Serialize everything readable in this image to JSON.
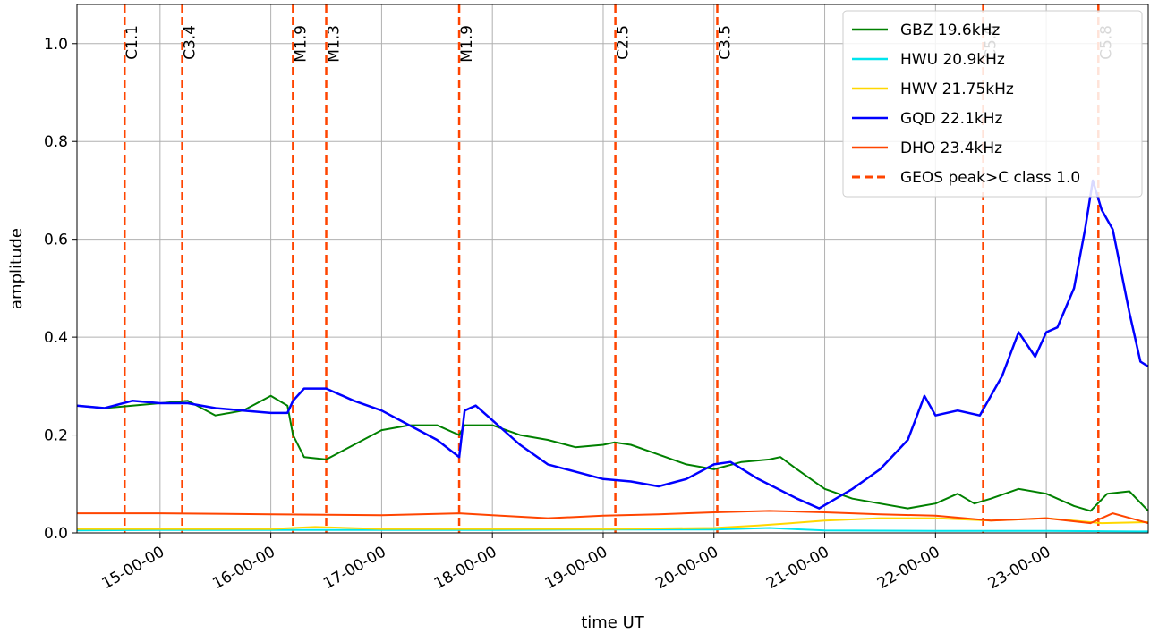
{
  "chart_data": {
    "type": "line",
    "xlabel": "time UT",
    "ylabel": "amplitude",
    "xlim": [
      14.25,
      23.92
    ],
    "ylim": [
      0.0,
      1.08
    ],
    "grid": true,
    "legend_position": "top-right",
    "y_ticks": [
      0.0,
      0.2,
      0.4,
      0.6,
      0.8,
      1.0
    ],
    "y_tick_labels": [
      "0.0",
      "0.2",
      "0.4",
      "0.6",
      "0.8",
      "1.0"
    ],
    "x_ticks": [
      15,
      16,
      17,
      18,
      19,
      20,
      21,
      22,
      23
    ],
    "x_tick_labels": [
      "15-00-00",
      "16-00-00",
      "17-00-00",
      "18-00-00",
      "19-00-00",
      "20-00-00",
      "21-00-00",
      "22-00-00",
      "23-00-00"
    ],
    "series": [
      {
        "name": "GBZ 19.6kHz",
        "color": "#008000",
        "points": [
          [
            14.25,
            0.26
          ],
          [
            14.5,
            0.255
          ],
          [
            14.75,
            0.26
          ],
          [
            15.0,
            0.265
          ],
          [
            15.25,
            0.27
          ],
          [
            15.5,
            0.24
          ],
          [
            15.75,
            0.25
          ],
          [
            16.0,
            0.28
          ],
          [
            16.15,
            0.26
          ],
          [
            16.2,
            0.2
          ],
          [
            16.3,
            0.155
          ],
          [
            16.5,
            0.15
          ],
          [
            16.75,
            0.18
          ],
          [
            17.0,
            0.21
          ],
          [
            17.25,
            0.22
          ],
          [
            17.5,
            0.22
          ],
          [
            17.7,
            0.2
          ],
          [
            17.75,
            0.22
          ],
          [
            18.0,
            0.22
          ],
          [
            18.25,
            0.2
          ],
          [
            18.5,
            0.19
          ],
          [
            18.75,
            0.175
          ],
          [
            19.0,
            0.18
          ],
          [
            19.1,
            0.185
          ],
          [
            19.25,
            0.18
          ],
          [
            19.5,
            0.16
          ],
          [
            19.75,
            0.14
          ],
          [
            20.0,
            0.13
          ],
          [
            20.25,
            0.145
          ],
          [
            20.5,
            0.15
          ],
          [
            20.6,
            0.155
          ],
          [
            20.75,
            0.13
          ],
          [
            21.0,
            0.09
          ],
          [
            21.25,
            0.07
          ],
          [
            21.5,
            0.06
          ],
          [
            21.75,
            0.05
          ],
          [
            22.0,
            0.06
          ],
          [
            22.2,
            0.08
          ],
          [
            22.35,
            0.06
          ],
          [
            22.5,
            0.07
          ],
          [
            22.75,
            0.09
          ],
          [
            23.0,
            0.08
          ],
          [
            23.25,
            0.055
          ],
          [
            23.4,
            0.045
          ],
          [
            23.55,
            0.08
          ],
          [
            23.75,
            0.085
          ],
          [
            23.92,
            0.045
          ]
        ]
      },
      {
        "name": "HWU 20.9kHz",
        "color": "#00e5ee",
        "points": [
          [
            14.25,
            0.005
          ],
          [
            15.0,
            0.006
          ],
          [
            16.0,
            0.006
          ],
          [
            17.0,
            0.006
          ],
          [
            18.0,
            0.006
          ],
          [
            19.0,
            0.007
          ],
          [
            20.0,
            0.007
          ],
          [
            20.5,
            0.01
          ],
          [
            21.0,
            0.005
          ],
          [
            22.0,
            0.004
          ],
          [
            23.0,
            0.004
          ],
          [
            23.92,
            0.003
          ]
        ]
      },
      {
        "name": "HWV 21.75kHz",
        "color": "#ffd700",
        "points": [
          [
            14.25,
            0.008
          ],
          [
            15.0,
            0.008
          ],
          [
            16.0,
            0.008
          ],
          [
            16.4,
            0.012
          ],
          [
            17.0,
            0.008
          ],
          [
            18.0,
            0.008
          ],
          [
            19.0,
            0.008
          ],
          [
            20.0,
            0.01
          ],
          [
            20.4,
            0.015
          ],
          [
            20.7,
            0.02
          ],
          [
            21.0,
            0.025
          ],
          [
            21.5,
            0.03
          ],
          [
            22.0,
            0.03
          ],
          [
            22.5,
            0.025
          ],
          [
            23.0,
            0.03
          ],
          [
            23.5,
            0.02
          ],
          [
            23.92,
            0.022
          ]
        ]
      },
      {
        "name": "GQD 22.1kHz",
        "color": "#0000ff",
        "points": [
          [
            14.25,
            0.26
          ],
          [
            14.5,
            0.255
          ],
          [
            14.75,
            0.27
          ],
          [
            15.0,
            0.265
          ],
          [
            15.25,
            0.265
          ],
          [
            15.5,
            0.255
          ],
          [
            15.75,
            0.25
          ],
          [
            16.0,
            0.245
          ],
          [
            16.15,
            0.245
          ],
          [
            16.2,
            0.27
          ],
          [
            16.3,
            0.295
          ],
          [
            16.5,
            0.295
          ],
          [
            16.75,
            0.27
          ],
          [
            17.0,
            0.25
          ],
          [
            17.25,
            0.22
          ],
          [
            17.5,
            0.19
          ],
          [
            17.7,
            0.155
          ],
          [
            17.75,
            0.25
          ],
          [
            17.85,
            0.26
          ],
          [
            18.0,
            0.23
          ],
          [
            18.25,
            0.18
          ],
          [
            18.5,
            0.14
          ],
          [
            18.75,
            0.125
          ],
          [
            19.0,
            0.11
          ],
          [
            19.25,
            0.105
          ],
          [
            19.5,
            0.095
          ],
          [
            19.75,
            0.11
          ],
          [
            20.0,
            0.14
          ],
          [
            20.15,
            0.145
          ],
          [
            20.4,
            0.11
          ],
          [
            20.75,
            0.07
          ],
          [
            20.95,
            0.05
          ],
          [
            21.25,
            0.09
          ],
          [
            21.5,
            0.13
          ],
          [
            21.75,
            0.19
          ],
          [
            21.9,
            0.28
          ],
          [
            22.0,
            0.24
          ],
          [
            22.2,
            0.25
          ],
          [
            22.4,
            0.24
          ],
          [
            22.6,
            0.32
          ],
          [
            22.75,
            0.41
          ],
          [
            22.9,
            0.36
          ],
          [
            23.0,
            0.41
          ],
          [
            23.1,
            0.42
          ],
          [
            23.25,
            0.5
          ],
          [
            23.35,
            0.62
          ],
          [
            23.42,
            0.72
          ],
          [
            23.5,
            0.66
          ],
          [
            23.6,
            0.62
          ],
          [
            23.75,
            0.45
          ],
          [
            23.85,
            0.35
          ],
          [
            23.92,
            0.34
          ]
        ]
      },
      {
        "name": "DHO 23.4kHz",
        "color": "#ff4500",
        "points": [
          [
            14.25,
            0.04
          ],
          [
            15.0,
            0.04
          ],
          [
            16.0,
            0.038
          ],
          [
            17.0,
            0.036
          ],
          [
            17.7,
            0.04
          ],
          [
            18.0,
            0.036
          ],
          [
            18.5,
            0.03
          ],
          [
            19.0,
            0.035
          ],
          [
            19.5,
            0.038
          ],
          [
            20.0,
            0.042
          ],
          [
            20.5,
            0.045
          ],
          [
            21.0,
            0.042
          ],
          [
            21.5,
            0.038
          ],
          [
            22.0,
            0.035
          ],
          [
            22.5,
            0.025
          ],
          [
            23.0,
            0.03
          ],
          [
            23.4,
            0.02
          ],
          [
            23.6,
            0.04
          ],
          [
            23.92,
            0.02
          ]
        ]
      }
    ],
    "flares": {
      "name": "GEOS peak>C class 1.0",
      "color": "#ff4500",
      "events": [
        {
          "x": 14.68,
          "label": "C1.1"
        },
        {
          "x": 15.2,
          "label": "C3.4"
        },
        {
          "x": 16.2,
          "label": "M1.9"
        },
        {
          "x": 16.5,
          "label": "M1.3"
        },
        {
          "x": 17.7,
          "label": "M1.9"
        },
        {
          "x": 19.11,
          "label": "C2.5"
        },
        {
          "x": 20.03,
          "label": "C3.5"
        },
        {
          "x": 22.43,
          "label": "C5.0"
        },
        {
          "x": 23.47,
          "label": "C5.8"
        }
      ]
    }
  }
}
